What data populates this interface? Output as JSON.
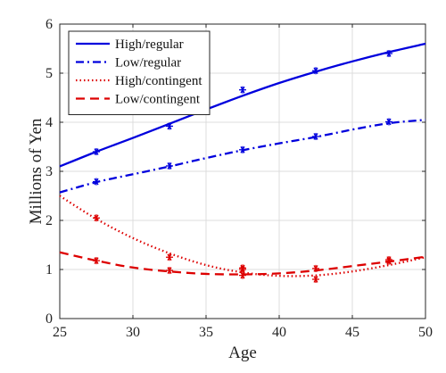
{
  "chart_data": {
    "type": "line",
    "title": "",
    "xlabel": "Age",
    "ylabel": "Millions of Yen",
    "xlim": [
      25,
      50
    ],
    "ylim": [
      0,
      6
    ],
    "xticks": [
      25,
      30,
      35,
      40,
      45,
      50
    ],
    "yticks": [
      0,
      1,
      2,
      3,
      4,
      5,
      6
    ],
    "grid": true,
    "legend_position": "top-left",
    "curve_x": [
      25,
      27.5,
      30,
      32.5,
      35,
      37.5,
      40,
      42.5,
      45,
      47.5,
      50
    ],
    "series": [
      {
        "name": "High/regular",
        "color": "#0000dd",
        "line_style": "solid",
        "curve": [
          3.1,
          3.4,
          3.68,
          3.97,
          4.26,
          4.54,
          4.8,
          5.03,
          5.24,
          5.43,
          5.6
        ],
        "markers": [
          [
            27.5,
            3.4
          ],
          [
            32.5,
            3.92
          ],
          [
            37.5,
            4.66
          ],
          [
            42.5,
            5.05
          ],
          [
            47.5,
            5.4
          ]
        ]
      },
      {
        "name": "Low/regular",
        "color": "#0000dd",
        "line_style": "dash-dot",
        "curve": [
          2.57,
          2.78,
          2.94,
          3.1,
          3.27,
          3.43,
          3.57,
          3.7,
          3.85,
          3.98,
          4.05
        ],
        "markers": [
          [
            27.5,
            2.79
          ],
          [
            32.5,
            3.11
          ],
          [
            37.5,
            3.44
          ],
          [
            42.5,
            3.71
          ],
          [
            47.5,
            4.01
          ]
        ]
      },
      {
        "name": "High/contingent",
        "color": "#dd0000",
        "line_style": "dotted",
        "curve": [
          2.5,
          2.03,
          1.64,
          1.33,
          1.09,
          0.94,
          0.87,
          0.88,
          0.96,
          1.09,
          1.25
        ],
        "markers": [
          [
            27.5,
            2.05
          ],
          [
            32.5,
            1.25
          ],
          [
            37.5,
            0.88
          ],
          [
            37.5,
            1.0
          ],
          [
            42.5,
            0.8
          ],
          [
            47.5,
            1.17
          ]
        ]
      },
      {
        "name": "Low/contingent",
        "color": "#dd0000",
        "line_style": "dashed",
        "curve": [
          1.35,
          1.18,
          1.04,
          0.96,
          0.91,
          0.9,
          0.92,
          0.98,
          1.07,
          1.16,
          1.26
        ],
        "markers": [
          [
            27.5,
            1.18
          ],
          [
            32.5,
            0.98
          ],
          [
            37.5,
            1.03
          ],
          [
            42.5,
            1.02
          ],
          [
            47.5,
            1.2
          ]
        ]
      }
    ]
  }
}
